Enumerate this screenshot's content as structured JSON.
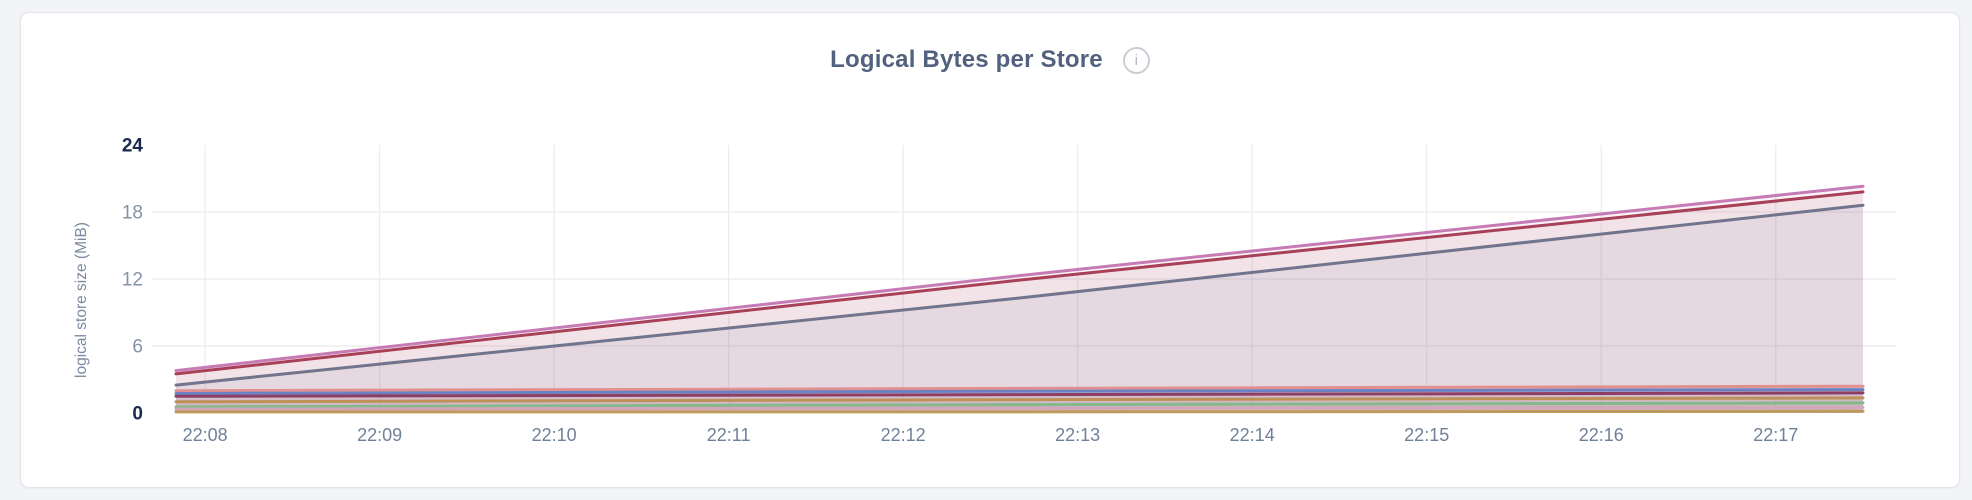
{
  "header": {
    "title": "Logical Bytes per Store",
    "info_icon": "i"
  },
  "colors": {
    "page_background": "#f2f4f8",
    "card_background": "#ffffff",
    "card_border": "#e3e4e8",
    "title_text": "#52617d",
    "gridline": "#ebebee",
    "tick_label": "#6f8199",
    "tick_label_emphasis": "#1a294d",
    "y_axis_title": "#7b8aa0"
  },
  "chart_data": {
    "type": "area",
    "title": "Logical Bytes per Store",
    "xlabel": "",
    "ylabel": "logical store size (MiB)",
    "units": "MiB",
    "ylim": [
      0,
      24
    ],
    "y_ticks": [
      0,
      6,
      12,
      18,
      24
    ],
    "y_ticks_emphasized": [
      0,
      24
    ],
    "x_tick_labels": [
      "22:08",
      "22:09",
      "22:10",
      "22:11",
      "22:12",
      "22:13",
      "22:14",
      "22:15",
      "22:16",
      "22:17"
    ],
    "grid": true,
    "legend_position": "none",
    "fill_opacity": 0.09,
    "line_width": 3,
    "x": [
      "22:07:50",
      "22:12:40",
      "22:17:30"
    ],
    "series": [
      {
        "name": "s1",
        "color": "#c77bb4",
        "values": [
          3.8,
          12.3,
          20.3
        ]
      },
      {
        "name": "s2",
        "color": "#a84158",
        "values": [
          3.5,
          11.9,
          19.8
        ]
      },
      {
        "name": "s3",
        "color": "#71748d",
        "values": [
          2.5,
          10.3,
          18.6
        ]
      },
      {
        "name": "s4",
        "color": "#e0908f",
        "values": [
          2.0,
          2.2,
          2.4
        ]
      },
      {
        "name": "s5",
        "color": "#6a82c3",
        "values": [
          1.75,
          1.95,
          2.1
        ]
      },
      {
        "name": "s6",
        "color": "#8d3f63",
        "values": [
          1.5,
          1.65,
          1.8
        ]
      },
      {
        "name": "s7",
        "color": "#bd9157",
        "values": [
          1.0,
          1.2,
          1.35
        ]
      },
      {
        "name": "s8",
        "color": "#85b88c",
        "values": [
          0.55,
          0.75,
          0.9
        ]
      },
      {
        "name": "s9",
        "color": "#d2a7ba",
        "values": [
          0.35,
          0.45,
          0.5
        ]
      },
      {
        "name": "s10",
        "color": "#c2995d",
        "values": [
          0.1,
          0.1,
          0.15
        ]
      }
    ]
  }
}
